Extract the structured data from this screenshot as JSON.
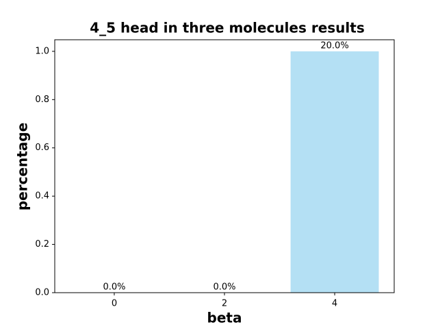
{
  "chart_data": {
    "type": "bar",
    "title": "4_5 head in three molecules results",
    "x_label": "beta",
    "y_label": "percentage",
    "x": [
      0,
      2,
      4
    ],
    "values": [
      0,
      0,
      1.0
    ],
    "annotations": [
      "0.0%",
      "0.0%",
      "20.0%"
    ],
    "bar_width": 1.6,
    "color": "#b4e0f4",
    "xlim": [
      -1.08,
      5.08
    ],
    "xticks": [
      0,
      2,
      4
    ],
    "ylim": [
      0,
      1.048
    ],
    "yticks": [
      {
        "value": 0,
        "label": "0.0"
      },
      {
        "value": 0.2,
        "label": "0.2"
      },
      {
        "value": 0.4,
        "label": "0.4"
      },
      {
        "value": 0.6,
        "label": "0.6"
      },
      {
        "value": 0.8,
        "label": "0.8"
      },
      {
        "value": 1.0,
        "label": "1.0"
      }
    ]
  }
}
